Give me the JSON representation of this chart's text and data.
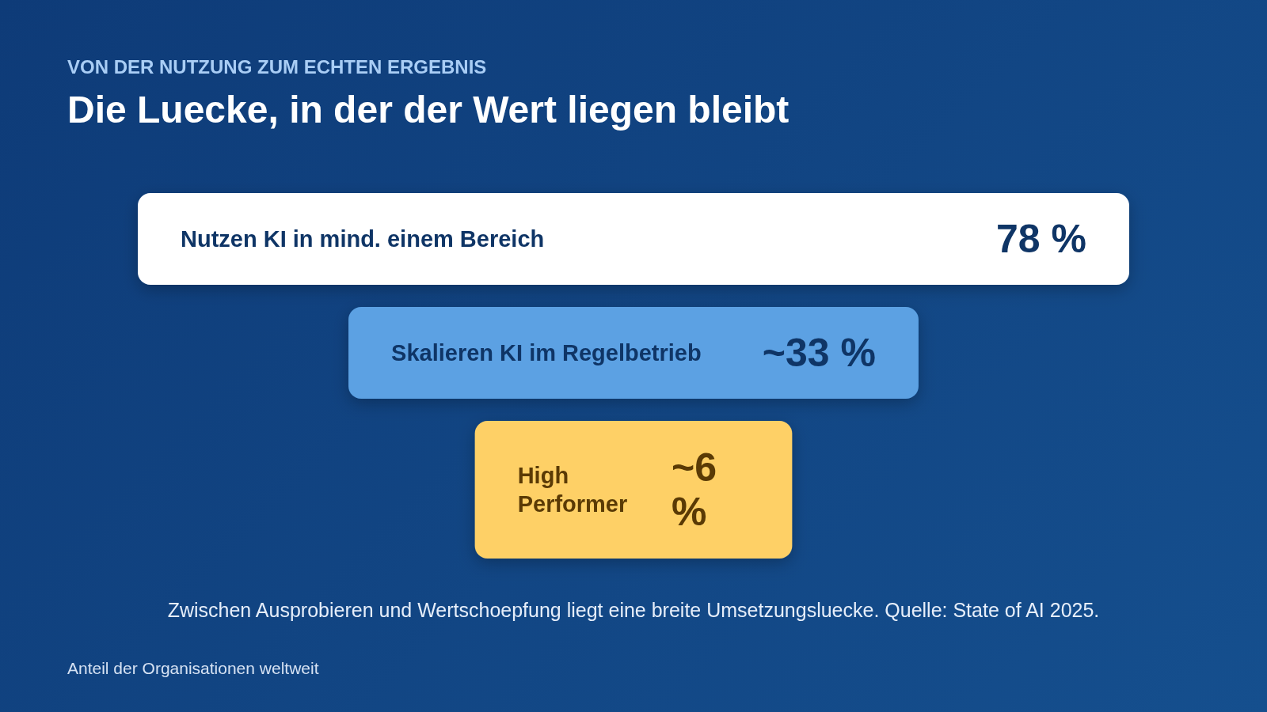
{
  "chart_data": {
    "type": "other",
    "subtitle": "VON DER NUTZUNG ZUM ECHTEN ERGEBNIS",
    "title": "Die Luecke, in der der Wert liegen bleibt",
    "categories": [
      "Nutzen KI in mind. einem Bereich",
      "Skalieren KI im Regelbetrieb",
      "High Performer"
    ],
    "values": [
      78,
      33,
      6
    ],
    "value_labels": [
      "78 %",
      "~33 %",
      "~6 %"
    ],
    "colors": [
      "#ffffff",
      "#5ba1e3",
      "#fed066"
    ],
    "annotations": [
      "Zwischen Ausprobieren und Wertschoepfung liegt eine breite Umsetzungsluecke. Quelle: State of AI 2025.",
      "Anteil der Organisationen weltweit"
    ]
  }
}
